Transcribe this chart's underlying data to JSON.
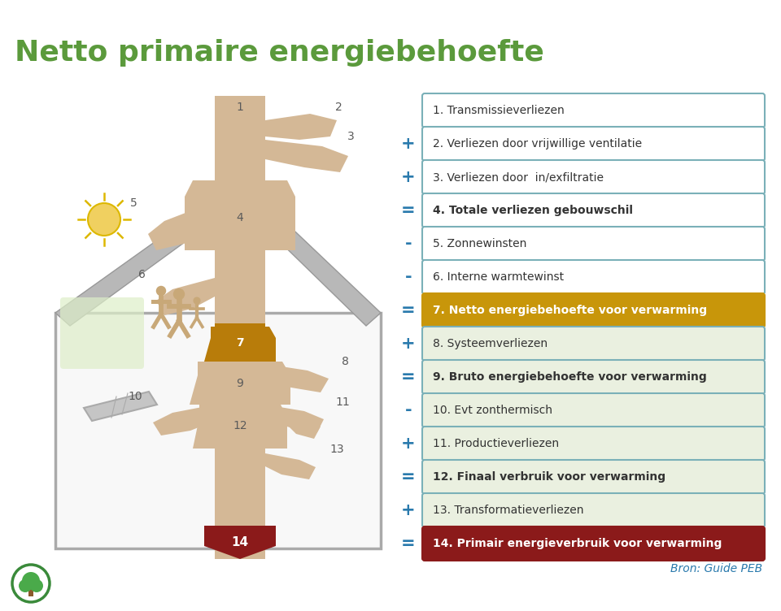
{
  "title": "Netto primaire energiebehoefte",
  "title_color": "#5b9a3c",
  "title_fontsize": 26,
  "bg_color": "#ffffff",
  "items": [
    {
      "num": "1.",
      "text": "Transmissieverliezen",
      "operator": "",
      "bold": false,
      "bg": "#ffffff",
      "border": "#7ab0b8",
      "text_color": "#333333"
    },
    {
      "num": "2.",
      "text": "Verliezen door vrijwillige ventilatie",
      "operator": "+",
      "bold": false,
      "bg": "#ffffff",
      "border": "#7ab0b8",
      "text_color": "#333333"
    },
    {
      "num": "3.",
      "text": "Verliezen door  in/exfiltratie",
      "operator": "+",
      "bold": false,
      "bg": "#ffffff",
      "border": "#7ab0b8",
      "text_color": "#333333"
    },
    {
      "num": "4.",
      "text": "Totale verliezen gebouwschil",
      "operator": "=",
      "bold": true,
      "bg": "#ffffff",
      "border": "#7ab0b8",
      "text_color": "#333333"
    },
    {
      "num": "5.",
      "text": "Zonnewinsten",
      "operator": "-",
      "bold": false,
      "bg": "#ffffff",
      "border": "#7ab0b8",
      "text_color": "#333333"
    },
    {
      "num": "6.",
      "text": "Interne warmtewinst",
      "operator": "-",
      "bold": false,
      "bg": "#ffffff",
      "border": "#7ab0b8",
      "text_color": "#333333"
    },
    {
      "num": "7.",
      "text": "Netto energiebehoefte voor verwarming",
      "operator": "=",
      "bold": true,
      "bg": "#c8960a",
      "border": "#c8960a",
      "text_color": "#ffffff"
    },
    {
      "num": "8.",
      "text": "Systeemverliezen",
      "operator": "+",
      "bold": false,
      "bg": "#eaf0e0",
      "border": "#7ab0b8",
      "text_color": "#333333"
    },
    {
      "num": "9.",
      "text": "Bruto energiebehoefte voor verwarming",
      "operator": "=",
      "bold": true,
      "bg": "#eaf0e0",
      "border": "#7ab0b8",
      "text_color": "#333333"
    },
    {
      "num": "10.",
      "text": "Evt zonthermisch",
      "operator": "-",
      "bold": false,
      "bg": "#eaf0e0",
      "border": "#7ab0b8",
      "text_color": "#333333"
    },
    {
      "num": "11.",
      "text": "Productieverliezen",
      "operator": "+",
      "bold": false,
      "bg": "#eaf0e0",
      "border": "#7ab0b8",
      "text_color": "#333333"
    },
    {
      "num": "12.",
      "text": "Finaal verbruik voor verwarming",
      "operator": "=",
      "bold": true,
      "bg": "#eaf0e0",
      "border": "#7ab0b8",
      "text_color": "#333333"
    },
    {
      "num": "13.",
      "text": "Transformatieverliezen",
      "operator": "+",
      "bold": false,
      "bg": "#eaf0e0",
      "border": "#7ab0b8",
      "text_color": "#333333"
    },
    {
      "num": "14.",
      "text": "Primair energieverbruik voor verwarming",
      "operator": "=",
      "bold": true,
      "bg": "#8b1a1a",
      "border": "#8b1a1a",
      "text_color": "#ffffff"
    }
  ],
  "source_text": "Bron: Guide PEB",
  "source_color": "#2a7aad",
  "tree_color": "#d4b896",
  "tree_dark": "#b87c0a",
  "tree_red": "#8b1a1a",
  "sun_color": "#f0d060",
  "green_patch": "#ddeec8",
  "people_color": "#c8a878",
  "op_color": "#2a7aad"
}
